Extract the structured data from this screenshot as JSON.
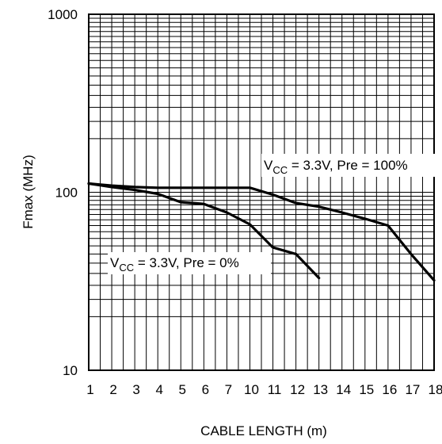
{
  "chart_data": {
    "type": "line",
    "title": "",
    "xlabel": "CABLE LENGTH (m)",
    "ylabel": "Fmax (MHz)",
    "xlim": [
      1,
      18
    ],
    "ylim": [
      10,
      1000
    ],
    "y_scale": "log",
    "grid": true,
    "x_ticks": [
      1,
      2,
      3,
      4,
      5,
      6,
      7,
      10,
      11,
      12,
      13,
      14,
      15,
      16,
      17,
      18
    ],
    "y_ticks": [
      10,
      100,
      1000
    ],
    "series": [
      {
        "label_prefix": "V",
        "label_sub": "CC",
        "label_suffix": " = 3.3V, Pre = 100%",
        "color": "#000000",
        "x": [
          1,
          2,
          3,
          4,
          5,
          6,
          7,
          10,
          11,
          12,
          13,
          14,
          15,
          16,
          17,
          18
        ],
        "y": [
          112,
          109,
          107,
          106,
          106,
          106,
          106,
          106,
          97,
          87,
          83,
          77,
          71,
          65,
          45,
          32
        ]
      },
      {
        "label_prefix": "V",
        "label_sub": "CC",
        "label_suffix": " = 3.3V, Pre = 0%",
        "color": "#000000",
        "x": [
          1,
          2,
          3,
          4,
          5,
          6,
          7,
          10,
          11,
          12,
          13
        ],
        "y": [
          112,
          107,
          103,
          98,
          88,
          86,
          77,
          66,
          49,
          45,
          33
        ]
      }
    ]
  }
}
